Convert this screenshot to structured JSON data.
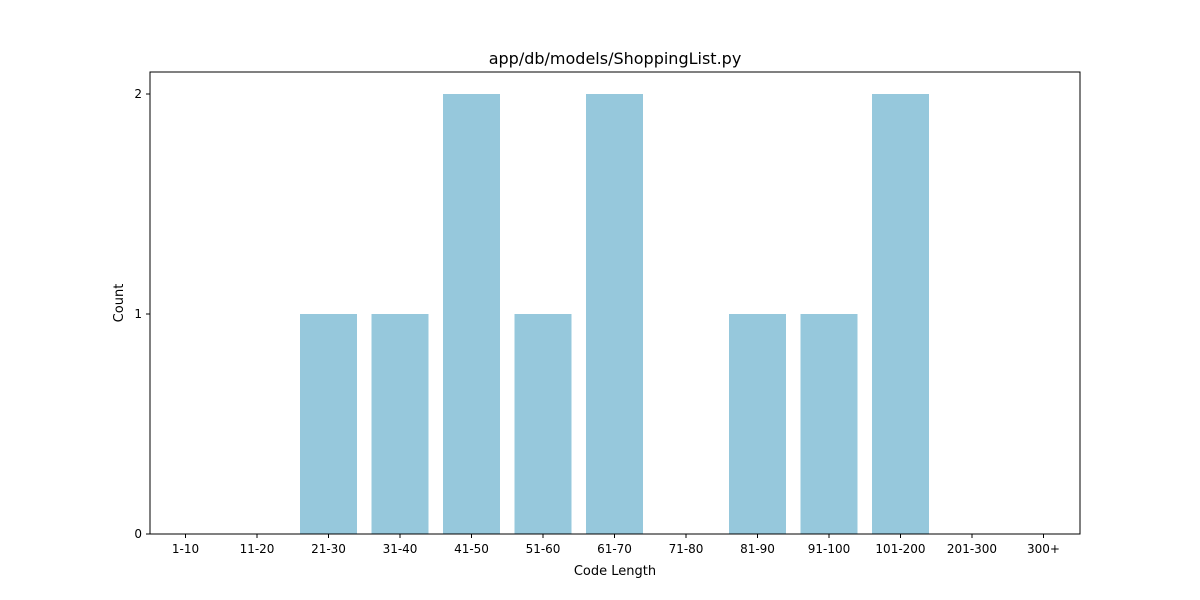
{
  "chart_data": {
    "type": "bar",
    "title": "app/db/models/ShoppingList.py",
    "xlabel": "Code Length",
    "ylabel": "Count",
    "categories": [
      "1-10",
      "11-20",
      "21-30",
      "31-40",
      "41-50",
      "51-60",
      "61-70",
      "71-80",
      "81-90",
      "91-100",
      "101-200",
      "201-300",
      "300+"
    ],
    "values": [
      0,
      0,
      1,
      1,
      2,
      1,
      2,
      0,
      1,
      1,
      2,
      0,
      0
    ],
    "yticks": [
      0,
      1,
      2
    ],
    "ylim": [
      0,
      2.1
    ],
    "grid": false,
    "bar_color": "#96c8dc"
  }
}
